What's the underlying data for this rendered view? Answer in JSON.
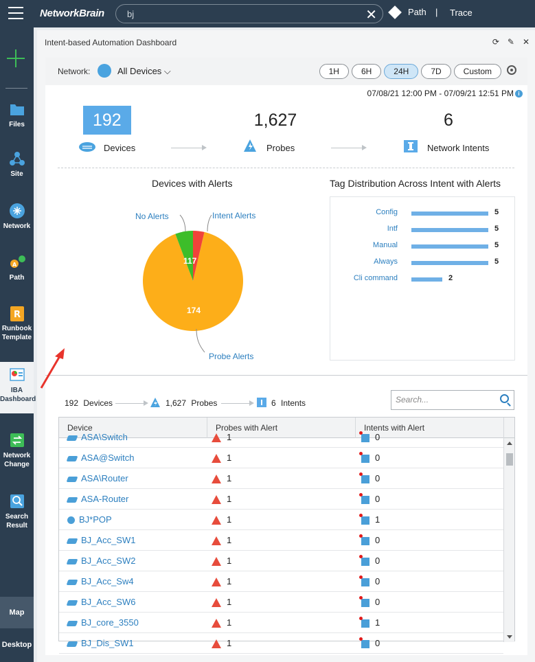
{
  "topbar": {
    "logo": "NetworkBrain",
    "search_value": "bj",
    "path_label": "Path",
    "separator": "|",
    "trace_label": "Trace"
  },
  "sidebar": {
    "items": [
      {
        "label": "Files",
        "icon": "folder-icon"
      },
      {
        "label": "Site",
        "icon": "site-icon"
      },
      {
        "label": "Network",
        "icon": "network-icon"
      },
      {
        "label": "Path",
        "icon": "path-icon"
      },
      {
        "label": "Runbook Template",
        "icon": "runbook-icon"
      },
      {
        "label": "IBA Dashboard",
        "icon": "dashboard-icon"
      },
      {
        "label": "Network Change",
        "icon": "network-change-icon"
      },
      {
        "label": "Search Result",
        "icon": "search-result-icon"
      }
    ],
    "bottom": [
      "Map",
      "Desktop"
    ]
  },
  "panel": {
    "title": "Intent-based Automation Dashboard",
    "network_label": "Network:",
    "network_value": "All Devices",
    "time_buttons": [
      "1H",
      "6H",
      "24H",
      "7D",
      "Custom"
    ],
    "selected_time": "24H",
    "date_range": "07/08/21 12:00 PM - 07/09/21 12:51 PM"
  },
  "stats": {
    "devices": {
      "value": "192",
      "label": "Devices"
    },
    "probes": {
      "value": "1,627",
      "label": "Probes"
    },
    "intents": {
      "value": "6",
      "label": "Network Intents"
    }
  },
  "pie_chart": {
    "title": "Devices with Alerts",
    "label_no_alerts": "No Alerts",
    "label_intent_alerts": "Intent Alerts",
    "label_probe_alerts": "Probe Alerts",
    "label_inner": "117",
    "label_main": "174",
    "colors": {
      "probe": "#fdae19",
      "no_alerts": "#3dbd2a",
      "intent": "#f0433a"
    }
  },
  "chart_data": [
    {
      "type": "pie",
      "title": "Devices with Alerts",
      "categories": [
        "Probe Alerts",
        "No Alerts",
        "Intent Alerts"
      ],
      "values": [
        174,
        11,
        7
      ]
    },
    {
      "type": "bar",
      "title": "Tag Distribution Across Intent with Alerts",
      "categories": [
        "Config",
        "Intf",
        "Manual",
        "Always",
        "Cli command"
      ],
      "values": [
        5,
        5,
        5,
        5,
        2
      ]
    }
  ],
  "tag_chart": {
    "title": "Tag Distribution Across Intent with Alerts"
  },
  "summary": {
    "devices": "192",
    "devices_label": "Devices",
    "probes": "1,627",
    "probes_label": "Probes",
    "intents": "6",
    "intents_label": "Intents"
  },
  "table": {
    "search_placeholder": "Search...",
    "columns": [
      "Device",
      "Probes with Alert",
      "Intents with Alert"
    ],
    "rows": [
      {
        "device": "ASA\\Switch",
        "probes": "1",
        "intents": "0",
        "icon": "switch-icon"
      },
      {
        "device": "ASA@Switch",
        "probes": "1",
        "intents": "0",
        "icon": "switch-icon"
      },
      {
        "device": "ASA\\Router",
        "probes": "1",
        "intents": "0",
        "icon": "switch-icon"
      },
      {
        "device": "ASA-Router",
        "probes": "1",
        "intents": "0",
        "icon": "switch-icon"
      },
      {
        "device": "BJ*POP",
        "probes": "1",
        "intents": "1",
        "icon": "router-icon"
      },
      {
        "device": "BJ_Acc_SW1",
        "probes": "1",
        "intents": "0",
        "icon": "switch-icon"
      },
      {
        "device": "BJ_Acc_SW2",
        "probes": "1",
        "intents": "0",
        "icon": "switch-icon"
      },
      {
        "device": "BJ_Acc_Sw4",
        "probes": "1",
        "intents": "0",
        "icon": "switch-icon"
      },
      {
        "device": "BJ_Acc_SW6",
        "probes": "1",
        "intents": "0",
        "icon": "switch-icon"
      },
      {
        "device": "BJ_core_3550",
        "probes": "1",
        "intents": "1",
        "icon": "switch-icon"
      },
      {
        "device": "BJ_Dis_SW1",
        "probes": "1",
        "intents": "0",
        "icon": "switch-icon"
      }
    ]
  }
}
